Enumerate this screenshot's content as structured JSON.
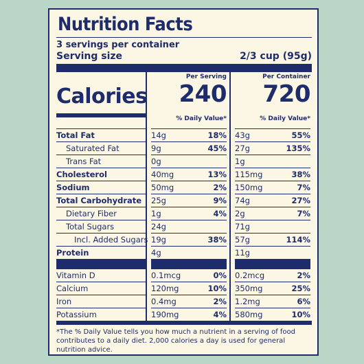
{
  "title": "Nutrition Facts",
  "servings_per_container": "3 servings per container",
  "serving_size_label": "Serving size",
  "serving_size_value": "2/3 cup (95g)",
  "calories_label": "Calories",
  "per_serving_label": "Per Serving",
  "per_container_label": "Per Container",
  "calories_per_serving": "240",
  "calories_per_container": "720",
  "dv_header": "% Daily Value*",
  "nutrients": [
    {
      "name": "Total Fat",
      "serving_amt": "14g",
      "serving_dv": "18%",
      "container_amt": "43g",
      "container_dv": "55%"
    },
    {
      "name": "Saturated Fat",
      "serving_amt": "9g",
      "serving_dv": "45%",
      "container_amt": "27g",
      "container_dv": "135%"
    },
    {
      "name": "Trans Fat",
      "serving_amt": "0g",
      "serving_dv": "",
      "container_amt": "1g",
      "container_dv": ""
    },
    {
      "name": "Cholesterol",
      "serving_amt": "40mg",
      "serving_dv": "13%",
      "container_amt": "115mg",
      "container_dv": "38%"
    },
    {
      "name": "Sodium",
      "serving_amt": "50mg",
      "serving_dv": "2%",
      "container_amt": "150mg",
      "container_dv": "7%"
    },
    {
      "name": "Total Carbohydrate",
      "serving_amt": "25g",
      "serving_dv": "9%",
      "container_amt": "74g",
      "container_dv": "27%"
    },
    {
      "name": "Dietary Fiber",
      "serving_amt": "1g",
      "serving_dv": "4%",
      "container_amt": "2g",
      "container_dv": "7%"
    },
    {
      "name": "Total Sugars",
      "serving_amt": "24g",
      "serving_dv": "",
      "container_amt": "71g",
      "container_dv": ""
    },
    {
      "name": "Incl. Added Sugars",
      "serving_amt": "19g",
      "serving_dv": "38%",
      "container_amt": "57g",
      "container_dv": "114%"
    },
    {
      "name": "Protein",
      "serving_amt": "4g",
      "serving_dv": "",
      "container_amt": "11g",
      "container_dv": ""
    }
  ],
  "vitamins": [
    {
      "name": "Vitamin D",
      "serving_amt": "0.1mcg",
      "serving_dv": "0%",
      "container_amt": "0.2mcg",
      "container_dv": "2%"
    },
    {
      "name": "Calcium",
      "serving_amt": "120mg",
      "serving_dv": "10%",
      "container_amt": "350mg",
      "container_dv": "25%"
    },
    {
      "name": "Iron",
      "serving_amt": "0.4mg",
      "serving_dv": "2%",
      "container_amt": "1.2mg",
      "container_dv": "6%"
    },
    {
      "name": "Potassium",
      "serving_amt": "190mg",
      "serving_dv": "4%",
      "container_amt": "580mg",
      "container_dv": "10%"
    }
  ],
  "footnote": "*The % Daily Value tells you how much a nutrient in a serving of food contributes to a daily diet. 2,000 calories a day is used for general nutrition advice.",
  "colors": {
    "ink": "#1f2c6b",
    "paper": "#fbf7e4",
    "background": "#b9d6c6"
  }
}
